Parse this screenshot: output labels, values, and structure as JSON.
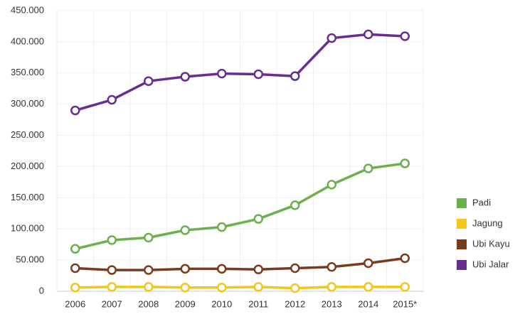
{
  "chart_data": {
    "type": "line",
    "categories": [
      "2006",
      "2007",
      "2008",
      "2009",
      "2010",
      "2011",
      "2012",
      "2013",
      "2014",
      "2015*"
    ],
    "series": [
      {
        "name": "Padi",
        "color": "#6ab04c",
        "values": [
          68000,
          82000,
          86000,
          98000,
          103000,
          116000,
          138000,
          171000,
          197000,
          205000
        ]
      },
      {
        "name": "Jagung",
        "color": "#f5c518",
        "values": [
          6000,
          7000,
          7000,
          6000,
          6000,
          7000,
          5000,
          7000,
          7000,
          7000
        ]
      },
      {
        "name": "Ubi Kayu",
        "color": "#7b3a1a",
        "values": [
          37000,
          34000,
          34000,
          36000,
          36000,
          35000,
          37000,
          39000,
          45000,
          53000
        ]
      },
      {
        "name": "Ubi Jalar",
        "color": "#6a2c91",
        "values": [
          290000,
          307000,
          337000,
          344000,
          349000,
          348000,
          345000,
          406000,
          412000,
          409000
        ]
      }
    ],
    "ylim": [
      0,
      450000
    ],
    "yticks": [
      0,
      {
        "value": 50000,
        "label": "50.000"
      },
      {
        "value": 100000,
        "label": "100.000"
      },
      {
        "value": 150000,
        "label": "150.000"
      },
      {
        "value": 200000,
        "label": "200.000"
      },
      {
        "value": 250000,
        "label": "250.000"
      },
      {
        "value": 300000,
        "label": "300.000"
      },
      {
        "value": 350000,
        "label": "350.000"
      },
      {
        "value": 400000,
        "label": "400.000"
      },
      {
        "value": 450000,
        "label": "450.000"
      }
    ],
    "grid": true,
    "legend": "right"
  }
}
